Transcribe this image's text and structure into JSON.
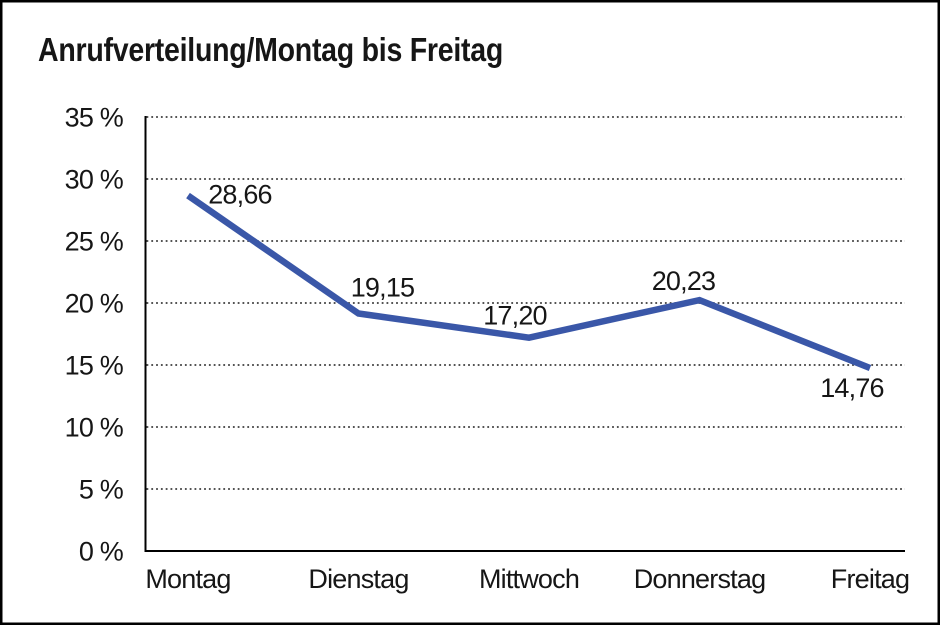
{
  "chart_data": {
    "type": "line",
    "title": "Anrufverteilung/Montag bis Freitag",
    "categories": [
      "Montag",
      "Dienstag",
      "Mittwoch",
      "Donnerstag",
      "Freitag"
    ],
    "values": [
      28.66,
      19.15,
      17.2,
      20.23,
      14.76
    ],
    "point_labels": [
      "28,66",
      "19,15",
      "17,20",
      "20,23",
      "14,76"
    ],
    "series_name": "Anrufverteilung",
    "xlabel": "",
    "ylabel": "",
    "ylim": [
      0,
      35
    ],
    "ytick_step": 5,
    "ytick_labels": [
      "0 %",
      "5 %",
      "10 %",
      "15 %",
      "20 %",
      "25 %",
      "30 %",
      "35 %"
    ],
    "grid": "horizontal-dotted",
    "legend": "none",
    "line_color": "#3A57A8",
    "axis_color": "#000000",
    "gridline_color": "#3d3d3d",
    "text_color": "#161616",
    "frame_color": "#000000",
    "background_color": "#ffffff"
  }
}
